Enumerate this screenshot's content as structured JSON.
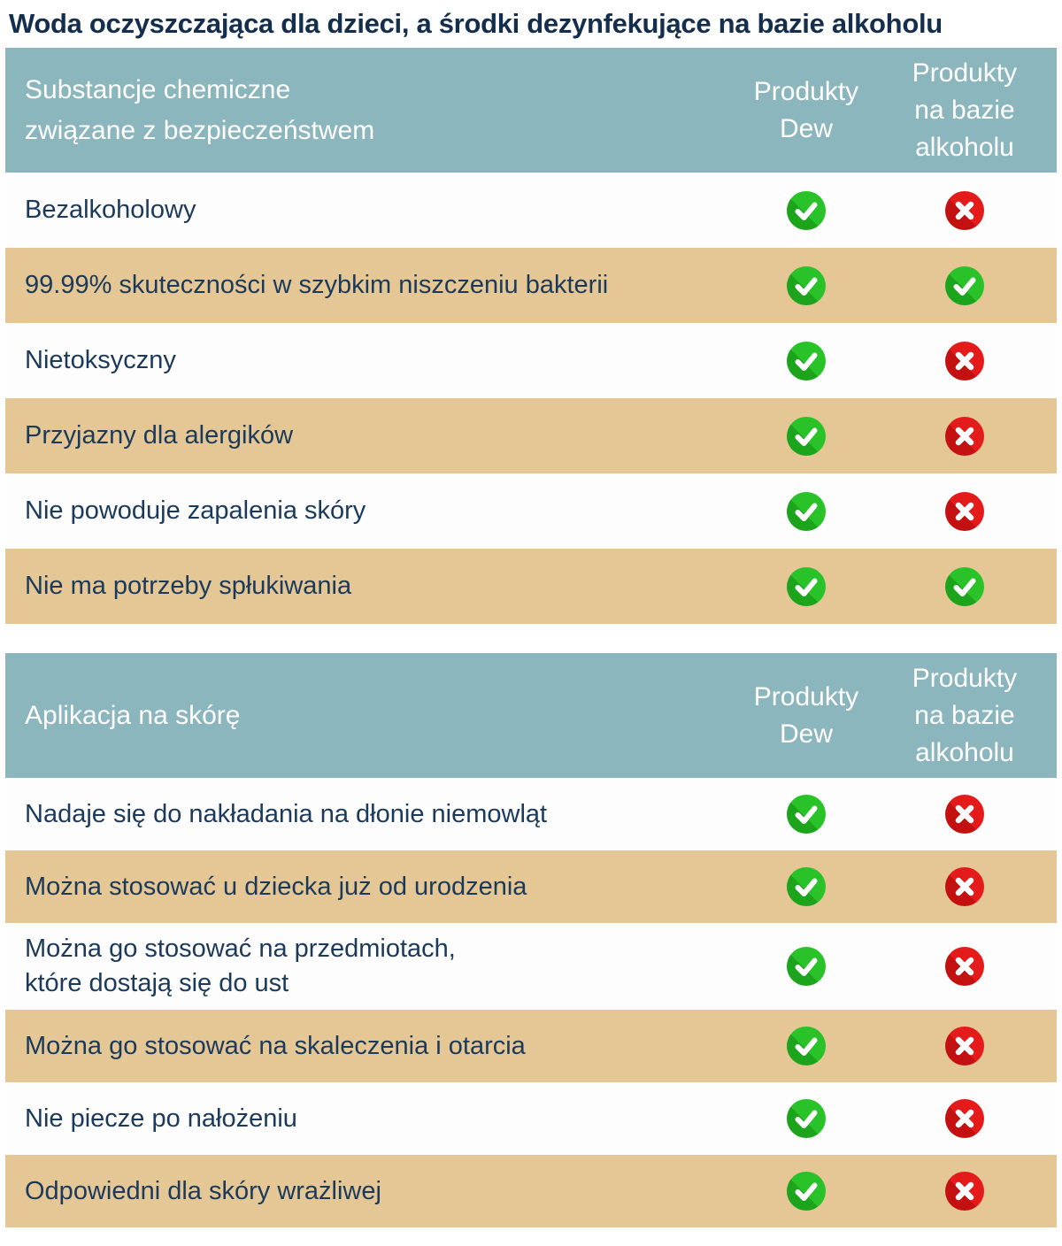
{
  "title": "Woda oczyszczająca dla dzieci, a środki dezynfekujące na bazie alkoholu",
  "columns": {
    "dew": "Produkty\nDew",
    "alcohol": "Produkty\nna bazie\nalkoholu"
  },
  "icons": {
    "positive": "check-icon",
    "negative": "cross-icon"
  },
  "colors": {
    "header_background": "#8cb6bd",
    "row_alt_background": "#e4c795",
    "row_background": "#fdfdfd",
    "text": "#1b3a5b",
    "title_text": "#142f4d",
    "header_text": "#ffffff",
    "check_green": "#29c329",
    "check_green_shade": "#1da41d",
    "cross_red": "#e41b1b",
    "cross_red_shade": "#c31111"
  },
  "chart_data": {
    "type": "table",
    "title": "Woda oczyszczająca dla dzieci, a środki dezynfekujące na bazie alkoholu",
    "columns": [
      "Produkty Dew",
      "Produkty na bazie alkoholu"
    ],
    "sections": [
      {
        "header": "Substancje chemiczne\nzwiązane z bezpieczeństwem",
        "rows": [
          {
            "label": "Bezalkoholowy",
            "dew": true,
            "alcohol": false
          },
          {
            "label": "99.99% skuteczności w szybkim niszczeniu bakterii",
            "dew": true,
            "alcohol": true
          },
          {
            "label": "Nietoksyczny",
            "dew": true,
            "alcohol": false
          },
          {
            "label": "Przyjazny dla alergików",
            "dew": true,
            "alcohol": false
          },
          {
            "label": "Nie powoduje zapalenia skóry",
            "dew": true,
            "alcohol": false
          },
          {
            "label": "Nie ma potrzeby spłukiwania",
            "dew": true,
            "alcohol": true
          }
        ]
      },
      {
        "header": "Aplikacja na skórę",
        "rows": [
          {
            "label": "Nadaje się do nakładania na dłonie niemowląt",
            "dew": true,
            "alcohol": false
          },
          {
            "label": "Można stosować u dziecka już od urodzenia",
            "dew": true,
            "alcohol": false
          },
          {
            "label": "Można go stosować na przedmiotach,\nktóre dostają się do ust",
            "dew": true,
            "alcohol": false
          },
          {
            "label": "Można go stosować na skaleczenia i otarcia",
            "dew": true,
            "alcohol": false
          },
          {
            "label": "Nie piecze po nałożeniu",
            "dew": true,
            "alcohol": false
          },
          {
            "label": "Odpowiedni dla skóry wrażliwej",
            "dew": true,
            "alcohol": false
          }
        ]
      }
    ]
  }
}
